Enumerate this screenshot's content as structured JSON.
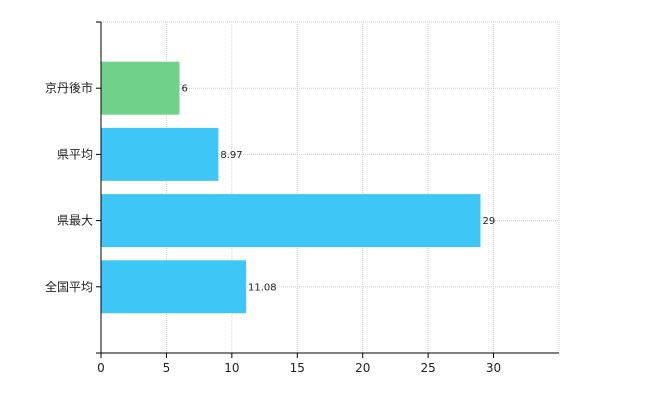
{
  "chart_data": {
    "type": "bar",
    "orientation": "horizontal",
    "categories": [
      "京丹後市",
      "県平均",
      "県最大",
      "全国平均"
    ],
    "values": [
      6,
      8.97,
      29,
      11.08
    ],
    "value_labels": [
      "6",
      "8.97",
      "29",
      "11.08"
    ],
    "bar_colors": [
      "#6fd18a",
      "#3ec6f7",
      "#3ec6f7",
      "#3ec6f7"
    ],
    "xlim": [
      0,
      35
    ],
    "x_ticks": [
      0,
      5,
      10,
      15,
      20,
      25,
      30
    ],
    "grid": true,
    "title": "",
    "xlabel": "",
    "ylabel": ""
  }
}
